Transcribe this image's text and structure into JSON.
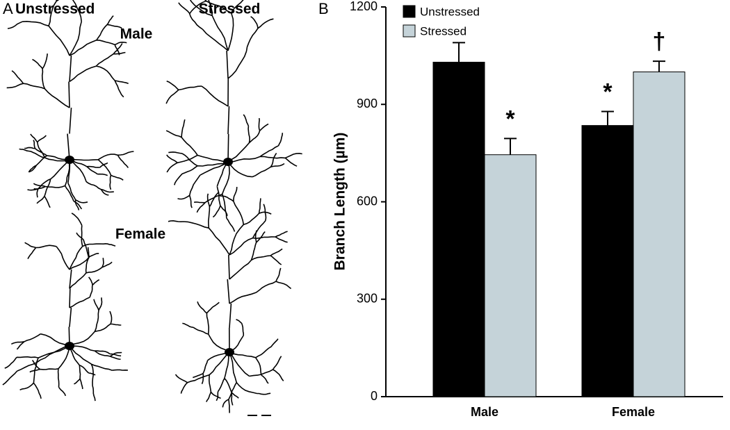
{
  "panel_a": {
    "label": "A",
    "columns": [
      "Unstressed",
      "Stressed"
    ],
    "rows": [
      "Male",
      "Female"
    ]
  },
  "chart_data": {
    "type": "bar",
    "panel_label": "B",
    "y_label": "Branch Length (µm)",
    "categories": [
      "Male",
      "Female"
    ],
    "series": [
      {
        "name": "Unstressed",
        "color": "#000000",
        "values": [
          1030,
          835
        ],
        "errors": [
          60,
          43
        ],
        "annotations": [
          null,
          "*"
        ]
      },
      {
        "name": "Stressed",
        "color": "#c5d3d9",
        "values": [
          745,
          1000
        ],
        "errors": [
          50,
          33
        ],
        "annotations": [
          "*",
          "†"
        ]
      }
    ],
    "ylim": [
      0,
      1200
    ],
    "yticks": [
      0,
      300,
      600,
      900,
      1200
    ],
    "legend": "top-left"
  }
}
